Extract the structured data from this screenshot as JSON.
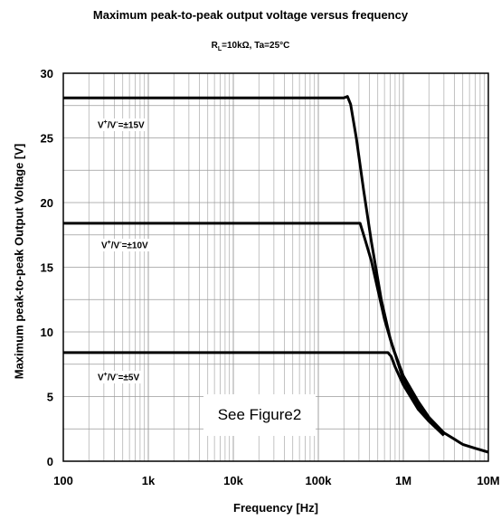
{
  "chart_data": {
    "type": "line",
    "title": "Maximum peak-to-peak output voltage versus frequency",
    "subtitle": {
      "r": "R",
      "sub": "L",
      "rest": "=10kΩ, Ta=25°C"
    },
    "xlabel": "Frequency [Hz]",
    "ylabel": "Maximum peak-to-peak Output Voltage [V]",
    "x_scale": "log",
    "xlim": [
      100,
      10000000
    ],
    "ylim": [
      0,
      30
    ],
    "x_ticks": [
      100,
      1000,
      10000,
      100000,
      1000000,
      10000000
    ],
    "x_tick_labels": [
      "100",
      "1k",
      "10k",
      "100k",
      "1M",
      "10M"
    ],
    "y_ticks": [
      0,
      5,
      10,
      15,
      20,
      25,
      30
    ],
    "y_tick_labels": [
      "0",
      "5",
      "10",
      "15",
      "20",
      "25",
      "30"
    ],
    "grid": true,
    "series": [
      {
        "label": {
          "v1": "V",
          "s1": "+",
          "mid": "/V",
          "s2": "-",
          "rest": "=±15V"
        },
        "points": [
          [
            100,
            28.1
          ],
          [
            200000,
            28.1
          ],
          [
            220000,
            28.2
          ],
          [
            240000,
            27.6
          ],
          [
            280000,
            25.0
          ],
          [
            340000,
            21.0
          ],
          [
            420000,
            17.0
          ],
          [
            550000,
            12.5
          ],
          [
            700000,
            9.5
          ],
          [
            1000000,
            6.3
          ],
          [
            1500000,
            4.3
          ],
          [
            2000000,
            3.1
          ],
          [
            3000000,
            2.0
          ]
        ]
      },
      {
        "label": {
          "v1": "V",
          "s1": "+",
          "mid": "/V",
          "s2": "-",
          "rest": "=±10V"
        },
        "points": [
          [
            100,
            18.4
          ],
          [
            310000,
            18.4
          ],
          [
            360000,
            17.0
          ],
          [
            420000,
            15.5
          ],
          [
            500000,
            13.3
          ],
          [
            600000,
            11.0
          ],
          [
            750000,
            8.8
          ],
          [
            1000000,
            6.6
          ],
          [
            1500000,
            4.6
          ],
          [
            2000000,
            3.4
          ],
          [
            3000000,
            2.2
          ]
        ]
      },
      {
        "label": {
          "v1": "V",
          "s1": "+",
          "mid": "/V",
          "s2": "-",
          "rest": "=±5V"
        },
        "points": [
          [
            100,
            8.4
          ],
          [
            660000,
            8.4
          ],
          [
            720000,
            8.1
          ],
          [
            800000,
            7.3
          ],
          [
            1000000,
            5.9
          ],
          [
            1500000,
            4.0
          ],
          [
            2000000,
            3.1
          ],
          [
            3000000,
            2.2
          ],
          [
            4000000,
            1.7
          ],
          [
            5000000,
            1.3
          ],
          [
            7000000,
            1.0
          ],
          [
            10000000,
            0.7
          ]
        ]
      }
    ],
    "annotation": "See Figure2"
  }
}
